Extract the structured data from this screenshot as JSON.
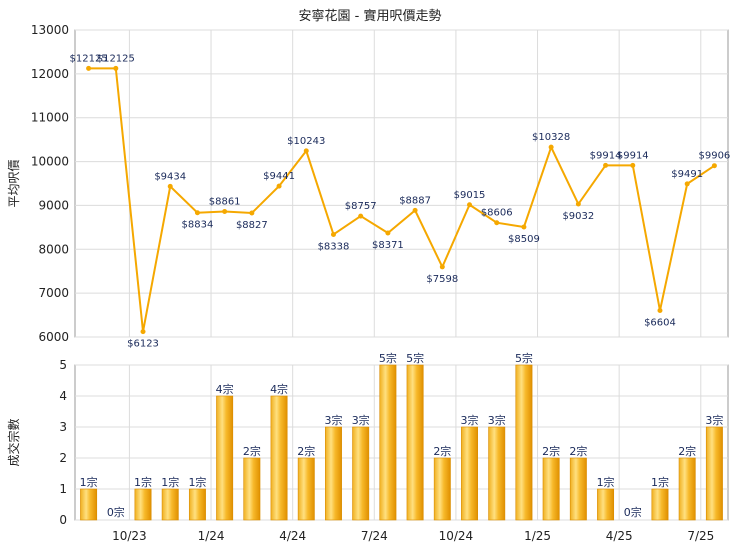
{
  "chart_data": [
    {
      "type": "line",
      "title": "安寧花園 - 實用呎價走勢",
      "ylabel": "平均呎價",
      "ylim": [
        6000,
        13000
      ],
      "yticks": [
        6000,
        7000,
        8000,
        9000,
        10000,
        11000,
        12000,
        13000
      ],
      "grid": true,
      "color": "#f5a800",
      "points": [
        {
          "v": 12125,
          "label": "$12125"
        },
        {
          "v": 12125,
          "label": "$12125"
        },
        {
          "v": 6123,
          "label": "$6123"
        },
        {
          "v": 9434,
          "label": "$9434"
        },
        {
          "v": 8834,
          "label": "$8834"
        },
        {
          "v": 8861,
          "label": "$8861"
        },
        {
          "v": 8827,
          "label": "$8827"
        },
        {
          "v": 9441,
          "label": "$9441"
        },
        {
          "v": 10243,
          "label": "$10243"
        },
        {
          "v": 8338,
          "label": "$8338"
        },
        {
          "v": 8757,
          "label": "$8757"
        },
        {
          "v": 8371,
          "label": "$8371"
        },
        {
          "v": 8887,
          "label": "$8887"
        },
        {
          "v": 7598,
          "label": "$7598"
        },
        {
          "v": 9015,
          "label": "$9015"
        },
        {
          "v": 8606,
          "label": "$8606"
        },
        {
          "v": 8509,
          "label": "$8509"
        },
        {
          "v": 10328,
          "label": "$10328"
        },
        {
          "v": 9032,
          "label": "$9032"
        },
        {
          "v": 9914,
          "label": "$9914"
        },
        {
          "v": 9914,
          "label": "$9914"
        },
        {
          "v": 6604,
          "label": "$6604"
        },
        {
          "v": 9491,
          "label": "$9491"
        },
        {
          "v": 9906,
          "label": "$9906"
        }
      ]
    },
    {
      "type": "bar",
      "ylabel": "成交宗數",
      "ylim": [
        0,
        5
      ],
      "yticks": [
        0,
        1,
        2,
        3,
        4,
        5
      ],
      "grid": true,
      "values": [
        1,
        0,
        1,
        1,
        1,
        4,
        2,
        4,
        2,
        3,
        3,
        5,
        5,
        2,
        3,
        3,
        5,
        2,
        2,
        1,
        0,
        1,
        2,
        3
      ],
      "data_labels": [
        "1宗",
        "0宗",
        "1宗",
        "1宗",
        "1宗",
        "4宗",
        "2宗",
        "4宗",
        "2宗",
        "3宗",
        "3宗",
        "5宗",
        "5宗",
        "2宗",
        "3宗",
        "3宗",
        "5宗",
        "2宗",
        "2宗",
        "1宗",
        "0宗",
        "1宗",
        "2宗",
        "3宗"
      ],
      "x_ticks": [
        {
          "after": 2,
          "label": "10/23"
        },
        {
          "after": 5,
          "label": "1/24"
        },
        {
          "after": 8,
          "label": "4/24"
        },
        {
          "after": 11,
          "label": "7/24"
        },
        {
          "after": 14,
          "label": "10/24"
        },
        {
          "after": 17,
          "label": "1/25"
        },
        {
          "after": 20,
          "label": "4/25"
        },
        {
          "after": 23,
          "label": "7/25"
        }
      ]
    }
  ]
}
